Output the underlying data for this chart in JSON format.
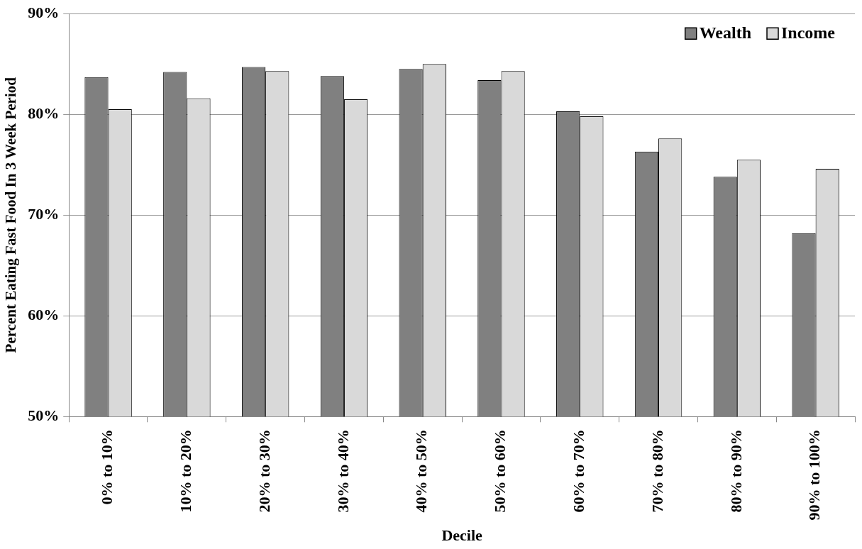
{
  "chart_data": {
    "type": "bar",
    "xlabel": "Decile",
    "ylabel": "Percent Eating Fast Food In 3 Week Period",
    "categories": [
      "0% to 10%",
      "10% to 20%",
      "20% to 30%",
      "30% to 40%",
      "40% to 50%",
      "50% to 60%",
      "60% to 70%",
      "70% to 80%",
      "80% to 90%",
      "90% to 100%"
    ],
    "series": [
      {
        "name": "Wealth",
        "color": "#808080",
        "values": [
          83.7,
          84.2,
          84.7,
          83.8,
          84.5,
          83.4,
          80.3,
          76.3,
          73.8,
          68.2
        ]
      },
      {
        "name": "Income",
        "color": "#d9d9d9",
        "values": [
          80.5,
          81.6,
          84.3,
          81.5,
          85.0,
          84.3,
          79.8,
          77.6,
          75.5,
          74.6
        ]
      }
    ],
    "ylim": [
      50,
      90
    ],
    "yticks": [
      {
        "value": 50,
        "label": "50%"
      },
      {
        "value": 60,
        "label": "60%"
      },
      {
        "value": 70,
        "label": "70%"
      },
      {
        "value": 80,
        "label": "80%"
      },
      {
        "value": 90,
        "label": "90%"
      }
    ],
    "grid": "y",
    "legend": "top right"
  }
}
